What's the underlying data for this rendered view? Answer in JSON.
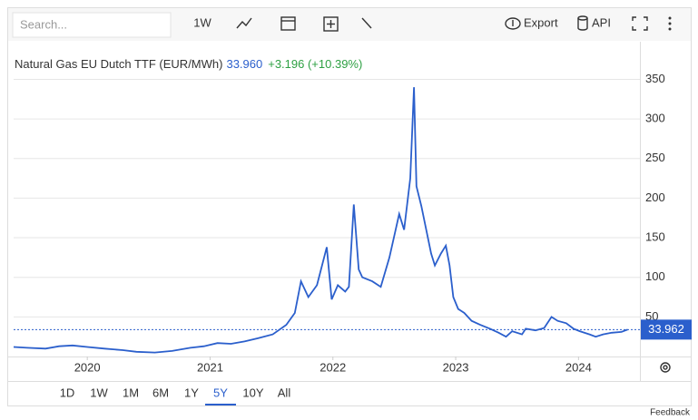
{
  "toolbar": {
    "search_placeholder": "Search...",
    "interval": "1W",
    "export": "Export",
    "api": "API"
  },
  "ranges": [
    "1D",
    "1W",
    "1M",
    "6M",
    "1Y",
    "5Y",
    "10Y",
    "All"
  ],
  "feedback": "Feedback",
  "chart_data": {
    "type": "line",
    "title": "Natural Gas EU Dutch TTF (EUR/MWh)",
    "price": "33.960",
    "change": "+3.196 (+10.39%)",
    "color": "#2b5fcc",
    "x": [
      2019.4,
      2019.51,
      2019.66,
      2019.77,
      2019.88,
      2020.0,
      2020.14,
      2020.29,
      2020.4,
      2020.55,
      2020.69,
      2020.84,
      2020.95,
      2021.06,
      2021.17,
      2021.28,
      2021.39,
      2021.51,
      2021.62,
      2021.69,
      2021.74,
      2021.8,
      2021.87,
      2021.95,
      2021.99,
      2022.04,
      2022.1,
      2022.13,
      2022.17,
      2022.21,
      2022.24,
      2022.32,
      2022.39,
      2022.46,
      2022.54,
      2022.58,
      2022.63,
      2022.66,
      2022.68,
      2022.72,
      2022.76,
      2022.8,
      2022.83,
      2022.88,
      2022.92,
      2022.95,
      2022.98,
      2023.02,
      2023.07,
      2023.13,
      2023.2,
      2023.28,
      2023.35,
      2023.41,
      2023.46,
      2023.54,
      2023.57,
      2023.65,
      2023.72,
      2023.78,
      2023.83,
      2023.9,
      2023.96,
      2024.01,
      2024.09,
      2024.14,
      2024.2,
      2024.27,
      2024.35,
      2024.4
    ],
    "values": [
      12,
      11,
      10,
      13,
      14,
      12,
      10,
      8,
      6,
      5,
      7,
      11,
      13,
      17,
      16,
      19,
      23,
      28,
      40,
      55,
      95,
      75,
      90,
      138,
      72,
      90,
      82,
      88,
      192,
      110,
      100,
      95,
      88,
      125,
      180,
      160,
      225,
      340,
      215,
      190,
      160,
      130,
      115,
      130,
      140,
      115,
      75,
      60,
      55,
      45,
      40,
      35,
      30,
      25,
      32,
      28,
      35,
      33,
      36,
      50,
      45,
      42,
      35,
      32,
      28,
      25,
      28,
      30,
      31,
      34
    ],
    "last_value": 33.962,
    "xlim": [
      2019.4,
      2024.5
    ],
    "xticks": [
      2020,
      2021,
      2022,
      2023,
      2024
    ],
    "ylim": [
      0,
      370
    ],
    "yticks": [
      50,
      100,
      150,
      200,
      250,
      300,
      350
    ],
    "grid": true
  }
}
